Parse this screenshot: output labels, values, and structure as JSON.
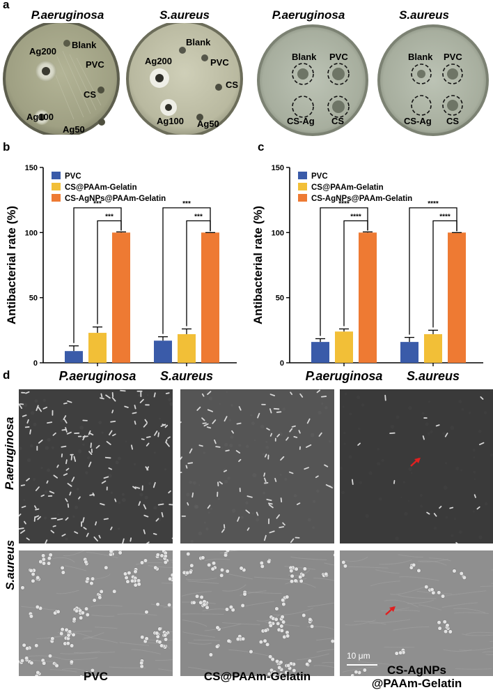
{
  "panels": {
    "a": "a",
    "b": "b",
    "c": "c",
    "d": "d"
  },
  "panel_a": {
    "diffusion": {
      "dish1": {
        "title": "P.aeruginosa",
        "labels": {
          "blank": "Blank",
          "ag200": "Ag200",
          "pvc": "PVC",
          "cs": "CS",
          "ag100": "Ag100",
          "ag50": "Ag50"
        }
      },
      "dish2": {
        "title": "S.aureus",
        "labels": {
          "blank": "Blank",
          "ag200": "Ag200",
          "pvc": "PVC",
          "cs": "CS",
          "ag100": "Ag100",
          "ag50": "Ag50"
        }
      }
    },
    "wells": {
      "dish3": {
        "title": "P.aeruginosa",
        "labels": {
          "blank": "Blank",
          "pvc": "PVC",
          "csag": "CS-Ag",
          "cs": "CS"
        }
      },
      "dish4": {
        "title": "S.aureus",
        "labels": {
          "blank": "Blank",
          "pvc": "PVC",
          "csag": "CS-Ag",
          "cs": "CS"
        }
      }
    }
  },
  "chart_data": [
    {
      "panel": "b",
      "type": "bar",
      "ylabel": "Antibacterial  rate (%)",
      "ylim": [
        0,
        150
      ],
      "yticks": [
        0,
        50,
        100,
        150
      ],
      "categories": [
        "P.aeruginosa",
        "S.aureus"
      ],
      "series": [
        {
          "name": "PVC",
          "color": "#3a5ba9",
          "values": [
            9,
            17
          ],
          "errors": [
            4,
            3
          ]
        },
        {
          "name": "CS@PAAm-Gelatin",
          "color": "#f2bf37",
          "values": [
            23,
            22
          ],
          "errors": [
            4.5,
            4
          ]
        },
        {
          "name": "CS-AgNPs@PAAm-Gelatin",
          "color": "#ee7a33",
          "values": [
            100,
            100
          ],
          "errors": [
            0.5,
            0
          ]
        }
      ],
      "significance": [
        {
          "group": 0,
          "from": 0,
          "to": 2,
          "label": "***"
        },
        {
          "group": 0,
          "from": 1,
          "to": 2,
          "label": "***"
        },
        {
          "group": 1,
          "from": 0,
          "to": 2,
          "label": "***"
        },
        {
          "group": 1,
          "from": 1,
          "to": 2,
          "label": "***"
        }
      ],
      "legend": "top-left"
    },
    {
      "panel": "c",
      "type": "bar",
      "ylabel": "Antibacterial  rate (%)",
      "ylim": [
        0,
        150
      ],
      "yticks": [
        0,
        50,
        100,
        150
      ],
      "categories": [
        "P.aeruginosa",
        "S.aureus"
      ],
      "series": [
        {
          "name": "PVC",
          "color": "#3a5ba9",
          "values": [
            16,
            16
          ],
          "errors": [
            2.5,
            3.5
          ]
        },
        {
          "name": "CS@PAAm-Gelatin",
          "color": "#f2bf37",
          "values": [
            24,
            22
          ],
          "errors": [
            2,
            3
          ]
        },
        {
          "name": "CS-AgNPs@PAAm-Gelatin",
          "color": "#ee7a33",
          "values": [
            100,
            100
          ],
          "errors": [
            0.5,
            0
          ]
        }
      ],
      "significance": [
        {
          "group": 0,
          "from": 0,
          "to": 2,
          "label": "****"
        },
        {
          "group": 0,
          "from": 1,
          "to": 2,
          "label": "****"
        },
        {
          "group": 1,
          "from": 0,
          "to": 2,
          "label": "****"
        },
        {
          "group": 1,
          "from": 1,
          "to": 2,
          "label": "****"
        }
      ],
      "legend": "top-left"
    }
  ],
  "panel_d": {
    "rows": [
      "P.aeruginosa",
      "S.aureus"
    ],
    "columns": [
      "PVC",
      "CS@PAAm-Gelatin",
      "CS-AgNPs\n@PAAm-Gelatin"
    ],
    "scale_bar": "10 μm"
  },
  "colors": {
    "dish_plate": "#a7a88a",
    "dish_rim": "#6f705c",
    "well_plate": "#b8bfb0",
    "sem_rod_bg": "#3f3f3f",
    "sem_coc_bg": "#8a8a8a",
    "arrow": "#e02020"
  }
}
